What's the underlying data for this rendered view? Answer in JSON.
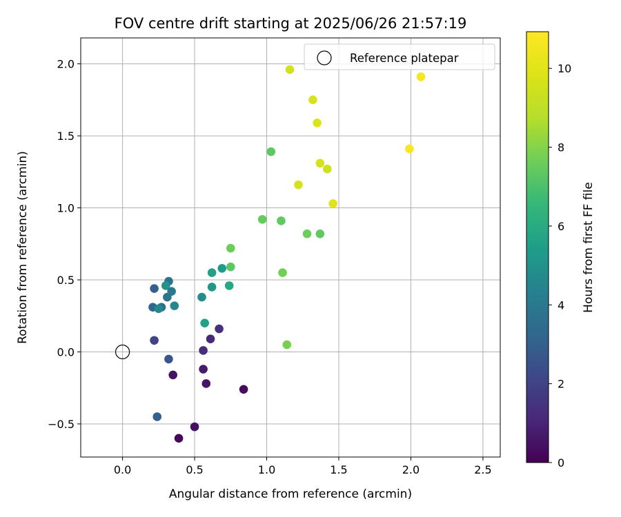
{
  "chart_data": {
    "type": "scatter",
    "title": "FOV centre drift starting at 2025/06/26 21:57:19",
    "xlabel": "Angular distance from reference (arcmin)",
    "ylabel": "Rotation from reference (arcmin)",
    "xlim": [
      -0.29,
      2.62
    ],
    "ylim": [
      -0.73,
      2.18
    ],
    "xticks": [
      0.0,
      0.5,
      1.0,
      1.5,
      2.0,
      2.5
    ],
    "xtick_labels": [
      "0.0",
      "0.5",
      "1.0",
      "1.5",
      "2.0",
      "2.5"
    ],
    "yticks": [
      -0.5,
      0.0,
      0.5,
      1.0,
      1.5,
      2.0
    ],
    "ytick_labels": [
      "−0.5",
      "0.0",
      "0.5",
      "1.0",
      "1.5",
      "2.0"
    ],
    "grid": true,
    "colormap": "viridis",
    "colorbar": {
      "label": "Hours from first FF file",
      "range": [
        0,
        10.93
      ],
      "ticks": [
        0,
        2,
        4,
        6,
        8,
        10
      ],
      "tick_labels": [
        "0",
        "2",
        "4",
        "6",
        "8",
        "10"
      ]
    },
    "legend": {
      "placement": "top-right",
      "entries": [
        {
          "label": "Reference platepar",
          "marker": "open-circle"
        }
      ]
    },
    "reference_point": {
      "x": 0.0,
      "y": 0.0
    },
    "points": [
      {
        "x": 0.39,
        "y": -0.6,
        "hours": 0.2
      },
      {
        "x": 0.5,
        "y": -0.52,
        "hours": 0.4
      },
      {
        "x": 0.84,
        "y": -0.26,
        "hours": 0.3
      },
      {
        "x": 0.35,
        "y": -0.16,
        "hours": 0.5
      },
      {
        "x": 0.58,
        "y": -0.22,
        "hours": 0.6
      },
      {
        "x": 0.56,
        "y": -0.12,
        "hours": 0.7
      },
      {
        "x": 0.56,
        "y": 0.01,
        "hours": 1.3
      },
      {
        "x": 0.61,
        "y": 0.09,
        "hours": 1.1
      },
      {
        "x": 0.67,
        "y": 0.16,
        "hours": 1.4
      },
      {
        "x": 0.22,
        "y": 0.08,
        "hours": 2.0
      },
      {
        "x": 0.32,
        "y": -0.05,
        "hours": 2.6
      },
      {
        "x": 0.24,
        "y": -0.45,
        "hours": 3.0
      },
      {
        "x": 0.22,
        "y": 0.44,
        "hours": 3.0
      },
      {
        "x": 0.21,
        "y": 0.31,
        "hours": 3.3
      },
      {
        "x": 0.27,
        "y": 0.31,
        "hours": 3.6
      },
      {
        "x": 0.25,
        "y": 0.3,
        "hours": 4.6
      },
      {
        "x": 0.31,
        "y": 0.38,
        "hours": 3.8
      },
      {
        "x": 0.32,
        "y": 0.49,
        "hours": 3.7
      },
      {
        "x": 0.3,
        "y": 0.46,
        "hours": 5.0
      },
      {
        "x": 0.34,
        "y": 0.42,
        "hours": 4.0
      },
      {
        "x": 0.36,
        "y": 0.32,
        "hours": 4.6
      },
      {
        "x": 0.55,
        "y": 0.38,
        "hours": 4.8
      },
      {
        "x": 0.57,
        "y": 0.2,
        "hours": 5.6
      },
      {
        "x": 0.62,
        "y": 0.45,
        "hours": 5.2
      },
      {
        "x": 0.62,
        "y": 0.55,
        "hours": 5.6
      },
      {
        "x": 0.69,
        "y": 0.58,
        "hours": 5.4
      },
      {
        "x": 0.74,
        "y": 0.46,
        "hours": 5.8
      },
      {
        "x": 0.75,
        "y": 0.59,
        "hours": 7.3
      },
      {
        "x": 0.75,
        "y": 0.72,
        "hours": 7.6
      },
      {
        "x": 0.97,
        "y": 0.92,
        "hours": 7.5
      },
      {
        "x": 1.03,
        "y": 1.39,
        "hours": 7.3
      },
      {
        "x": 1.1,
        "y": 0.91,
        "hours": 7.4
      },
      {
        "x": 1.11,
        "y": 0.55,
        "hours": 7.7
      },
      {
        "x": 1.14,
        "y": 0.05,
        "hours": 7.8
      },
      {
        "x": 1.28,
        "y": 0.82,
        "hours": 7.6
      },
      {
        "x": 1.37,
        "y": 0.82,
        "hours": 7.4
      },
      {
        "x": 1.16,
        "y": 1.96,
        "hours": 9.5
      },
      {
        "x": 1.22,
        "y": 1.16,
        "hours": 9.6
      },
      {
        "x": 1.32,
        "y": 1.75,
        "hours": 9.7
      },
      {
        "x": 1.35,
        "y": 1.59,
        "hours": 9.8
      },
      {
        "x": 1.37,
        "y": 1.31,
        "hours": 9.6
      },
      {
        "x": 1.42,
        "y": 1.27,
        "hours": 9.4
      },
      {
        "x": 1.46,
        "y": 1.03,
        "hours": 9.9
      },
      {
        "x": 1.99,
        "y": 1.41,
        "hours": 10.8
      },
      {
        "x": 2.07,
        "y": 1.91,
        "hours": 10.7
      }
    ]
  }
}
